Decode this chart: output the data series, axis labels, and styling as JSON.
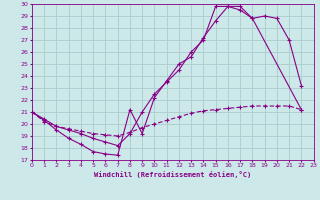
{
  "xlabel": "Windchill (Refroidissement éolien,°C)",
  "xlim": [
    0,
    23
  ],
  "ylim": [
    17,
    30
  ],
  "yticks": [
    17,
    18,
    19,
    20,
    21,
    22,
    23,
    24,
    25,
    26,
    27,
    28,
    29,
    30
  ],
  "xticks": [
    0,
    1,
    2,
    3,
    4,
    5,
    6,
    7,
    8,
    9,
    10,
    11,
    12,
    13,
    14,
    15,
    16,
    17,
    18,
    19,
    20,
    21,
    22,
    23
  ],
  "bg_color": "#cce8e8",
  "line_color": "#880088",
  "grid_color": "#aacccc",
  "line1_x": [
    0,
    1,
    2,
    3,
    4,
    5,
    6,
    7,
    8,
    9,
    10,
    11,
    12,
    13,
    14,
    15,
    16,
    17,
    18,
    19,
    20,
    21,
    22
  ],
  "line1_y": [
    21.0,
    20.3,
    19.5,
    18.8,
    18.3,
    17.7,
    17.5,
    17.4,
    21.2,
    19.2,
    22.2,
    23.6,
    25.0,
    25.6,
    27.2,
    28.6,
    29.8,
    29.8,
    28.8,
    29.0,
    28.8,
    27.0,
    23.2
  ],
  "line2_x": [
    0,
    1,
    2,
    3,
    4,
    5,
    6,
    7,
    8,
    9,
    10,
    11,
    12,
    13,
    14,
    15,
    16,
    17,
    18,
    22
  ],
  "line2_y": [
    21.0,
    20.4,
    19.8,
    19.5,
    19.2,
    18.8,
    18.5,
    18.2,
    19.2,
    21.0,
    22.5,
    23.5,
    24.5,
    26.0,
    27.0,
    29.8,
    29.8,
    29.5,
    28.8,
    21.2
  ],
  "line3_x": [
    0,
    1,
    2,
    3,
    4,
    5,
    6,
    7,
    8,
    9,
    10,
    11,
    12,
    13,
    14,
    15,
    16,
    17,
    18,
    19,
    20,
    21,
    22
  ],
  "line3_y": [
    21.0,
    20.2,
    19.8,
    19.6,
    19.4,
    19.2,
    19.1,
    19.0,
    19.3,
    19.7,
    20.0,
    20.3,
    20.6,
    20.9,
    21.1,
    21.2,
    21.3,
    21.4,
    21.5,
    21.5,
    21.5,
    21.5,
    21.2
  ]
}
